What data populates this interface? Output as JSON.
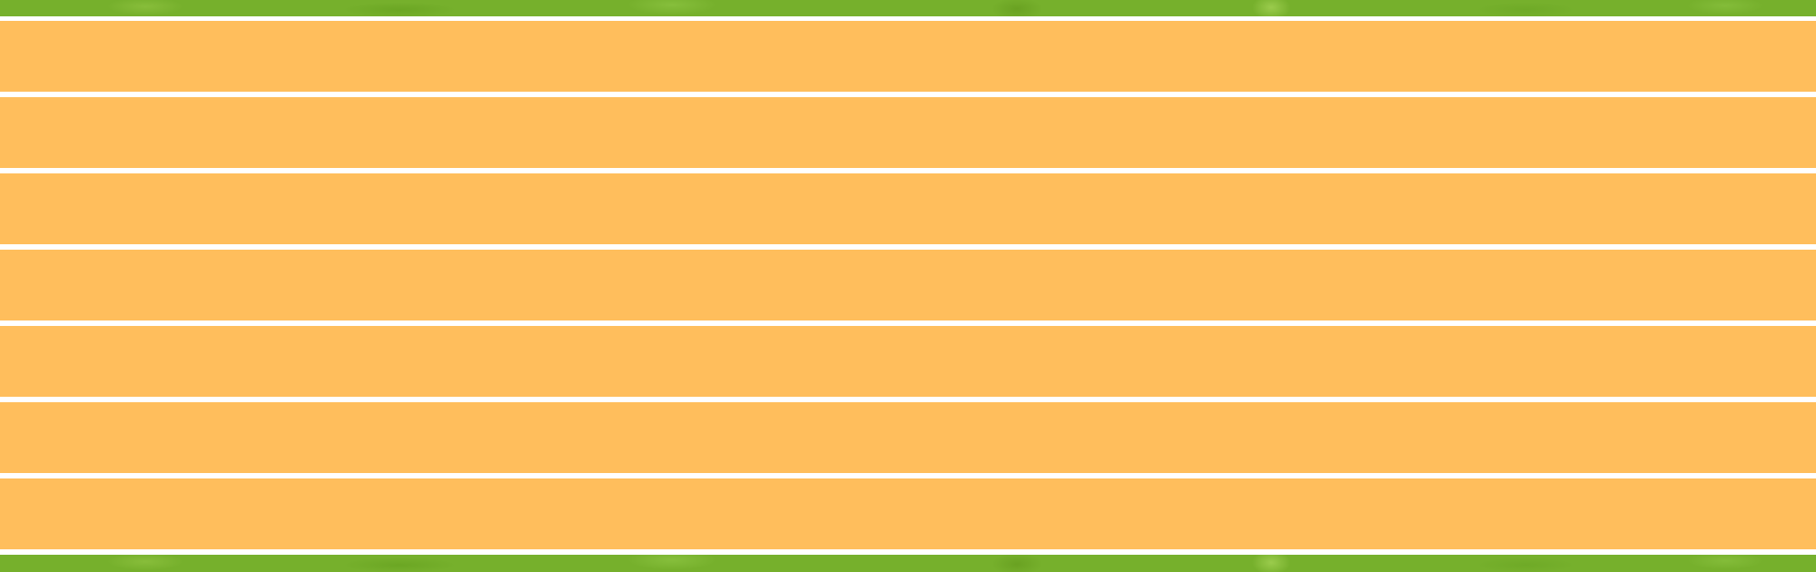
{
  "scene": {
    "type": "running-track",
    "lane_count": 7,
    "colors": {
      "grass": "#76b02c",
      "lane": "#ffbe5c",
      "lane_line": "#ffffff"
    }
  }
}
